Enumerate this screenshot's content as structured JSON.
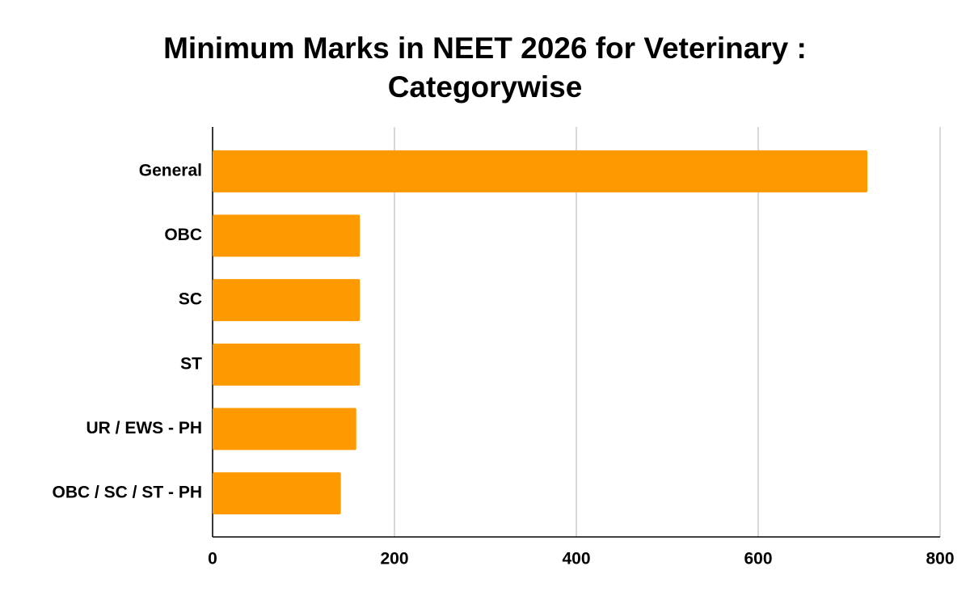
{
  "chart_data": {
    "type": "bar",
    "orientation": "horizontal",
    "title": "Minimum Marks in NEET 2026 for Veterinary : Categorywise",
    "categories": [
      "General",
      "OBC",
      "SC",
      "ST",
      "UR / EWS - PH",
      "OBC / SC / ST - PH"
    ],
    "values": [
      720,
      162,
      162,
      162,
      158,
      141
    ],
    "color": "#ff9900",
    "xlim": [
      0,
      800
    ],
    "xticks": [
      0,
      200,
      400,
      600,
      800
    ],
    "grid": true
  }
}
